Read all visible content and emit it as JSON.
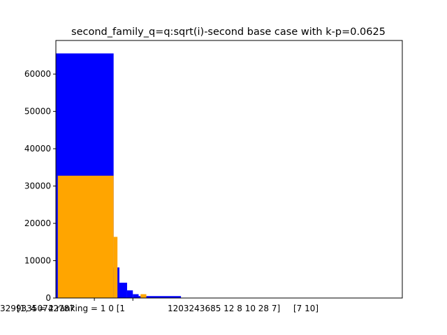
{
  "chart_data": {
    "type": "bar",
    "title": "second_family_q=q:sqrt(i)-second base case with k-p=0.0625",
    "xlabel": "",
    "ylabel": "",
    "xlim": [
      0,
      18
    ],
    "ylim": [
      0,
      69000
    ],
    "yticks": [
      0,
      10000,
      20000,
      30000,
      40000,
      50000,
      60000
    ],
    "ytick_labels": [
      "0",
      "10000",
      "20000",
      "30000",
      "40000",
      "50000",
      "60000"
    ],
    "xtick_labels": [
      "32993350742787",
      "[1, 4 = 2 ranking = 1 0 [1",
      "1203243685 12 8 10 28 7]",
      "[7 10]"
    ],
    "colors": {
      "series_a": "#0000ff",
      "series_b": "#ffa500"
    },
    "series": [
      {
        "color": "#0000ff",
        "bars": [
          {
            "x0": 0.0,
            "x1": 3.0,
            "value": 65536
          },
          {
            "x0": 3.0,
            "x1": 3.3,
            "value": 8192
          },
          {
            "x0": 3.3,
            "x1": 3.7,
            "value": 4096
          },
          {
            "x0": 3.7,
            "x1": 4.0,
            "value": 2048
          },
          {
            "x0": 4.0,
            "x1": 4.3,
            "value": 1024
          },
          {
            "x0": 4.3,
            "x1": 4.7,
            "value": 512
          },
          {
            "x0": 4.7,
            "x1": 6.5,
            "value": 512
          }
        ]
      },
      {
        "color": "#ffa500",
        "bars": [
          {
            "x0": 0.1,
            "x1": 3.0,
            "value": 32768
          },
          {
            "x0": 3.0,
            "x1": 3.2,
            "value": 16384
          },
          {
            "x0": 4.4,
            "x1": 4.7,
            "value": 1024
          }
        ]
      }
    ]
  }
}
